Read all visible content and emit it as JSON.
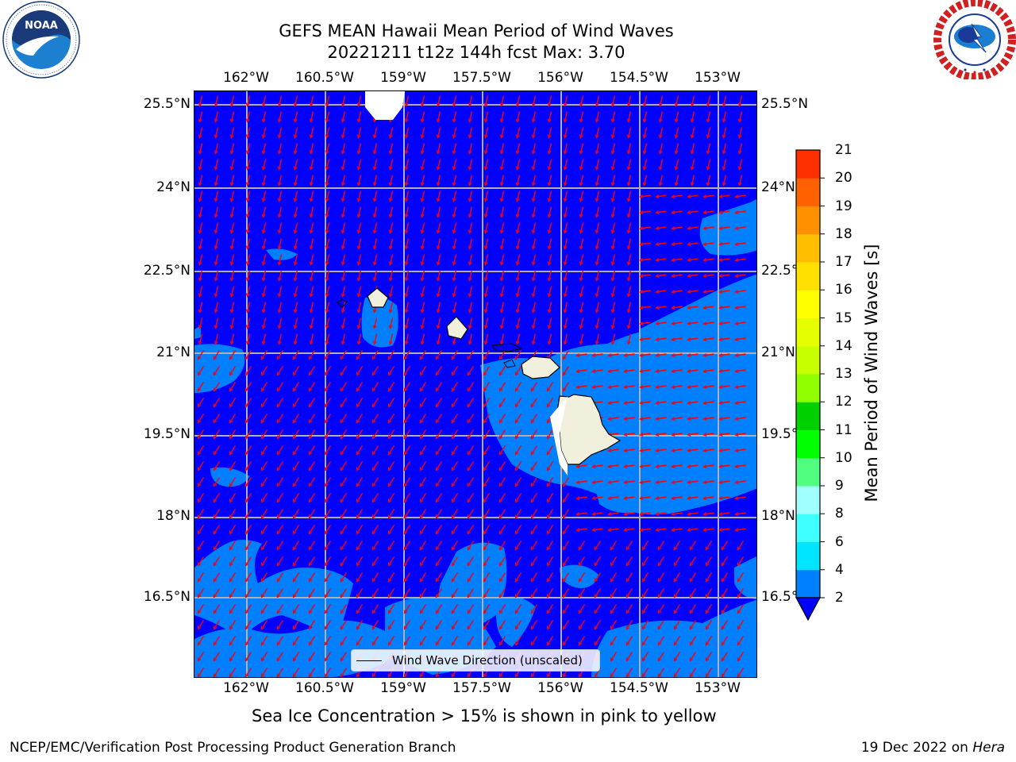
{
  "title": {
    "line1": "GEFS MEAN Hawaii Mean Period of Wind Waves",
    "line2": "20221211 t12z 144h fcst   Max: 3.70"
  },
  "map": {
    "longitude_ticks": [
      "162°W",
      "160.5°W",
      "159°W",
      "157.5°W",
      "156°W",
      "154.5°W",
      "153°W"
    ],
    "latitude_ticks": [
      "25.5°N",
      "24°N",
      "22.5°N",
      "21°N",
      "19.5°N",
      "18°N",
      "16.5°N"
    ],
    "ocean_color": "#0000ff",
    "wave_2_4_color": "#0080ff",
    "land_color": "#f0f0dc",
    "arrow_color": "#ff0000",
    "grid_color": "#b0b0b0"
  },
  "legend": {
    "label": "Wind Wave Direction (unscaled)"
  },
  "colorbar": {
    "label": "Mean Period of Wind Waves [s]",
    "ticks": [
      "2",
      "4",
      "6",
      "8",
      "9",
      "10",
      "11",
      "12",
      "13",
      "14",
      "15",
      "16",
      "17",
      "18",
      "19",
      "20",
      "21"
    ],
    "levels": [
      2,
      4,
      6,
      8,
      9,
      10,
      11,
      12,
      13,
      14,
      15,
      16,
      17,
      18,
      19,
      20,
      21
    ],
    "colors": [
      "#0080ff",
      "#00e5ff",
      "#40ffff",
      "#a0ffff",
      "#50ff80",
      "#00ff00",
      "#00d000",
      "#90ff00",
      "#c8ff00",
      "#e6ff00",
      "#ffff00",
      "#ffe000",
      "#ffbf00",
      "#ff9000",
      "#ff6000",
      "#ff3000"
    ],
    "under_color": "#0000ff"
  },
  "notes": {
    "ice": "Sea Ice Concentration > 15% is shown in pink to yellow"
  },
  "footer": {
    "left": "NCEP/EMC/Verification Post Processing Product Generation Branch",
    "right_prefix": "19 Dec 2022 on ",
    "right_host": "Hera"
  }
}
